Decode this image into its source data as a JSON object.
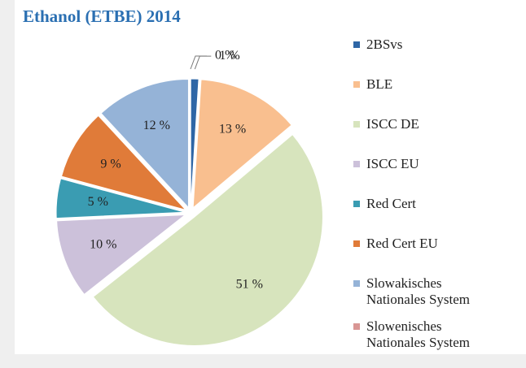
{
  "chart_data": {
    "type": "pie",
    "title": "Ethanol (ETBE) 2014",
    "categories": [
      "2BSvs",
      "BLE",
      "ISCC DE",
      "ISCC EU",
      "Red Cert",
      "Red Cert EU",
      "Slowakisches Nationales System",
      "Slowenisches Nationales System"
    ],
    "values": [
      1,
      13,
      51,
      10,
      5,
      9,
      12,
      0
    ],
    "value_labels": [
      "1 %",
      "13 %",
      "51 %",
      "10 %",
      "5 %",
      "9 %",
      "12 %",
      "0 %"
    ],
    "colors": [
      "#2e66a6",
      "#f9bf8f",
      "#d7e4bd",
      "#ccc1da",
      "#3a9cb2",
      "#e07b39",
      "#95b3d7",
      "#d99694"
    ],
    "legend": "right"
  }
}
